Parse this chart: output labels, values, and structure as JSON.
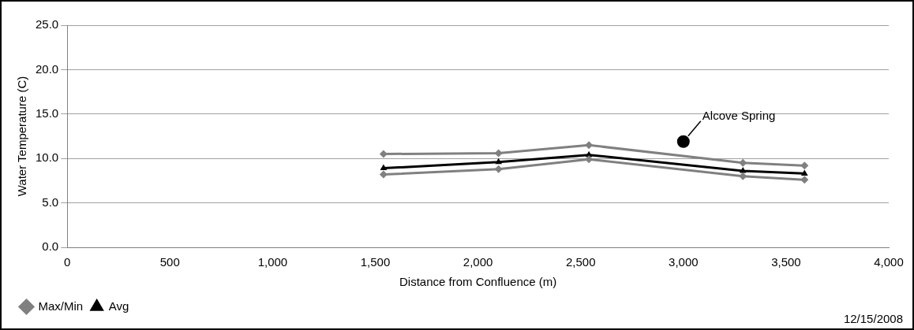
{
  "chart_data": {
    "type": "line",
    "xlabel": "Distance from Confluence (m)",
    "ylabel": "Water Temperature (C)",
    "x": [
      1540,
      2100,
      2540,
      3290,
      3590
    ],
    "series": [
      {
        "name": "Max/Min",
        "color": "#808080",
        "marker": "diamond",
        "values": [
          10.5,
          10.6,
          11.5,
          9.5,
          9.2
        ]
      },
      {
        "color": "#808080",
        "marker": "diamond",
        "values": [
          8.2,
          8.8,
          9.9,
          8.0,
          7.6
        ]
      },
      {
        "name": "Avg",
        "color": "#000000",
        "marker": "triangle",
        "values": [
          8.9,
          9.6,
          10.4,
          8.6,
          8.3
        ]
      },
      {
        "type": "scatter",
        "color": "#000000",
        "marker": "circle",
        "x": [
          3000
        ],
        "values": [
          11.9
        ]
      }
    ],
    "xlim": [
      0,
      4000
    ],
    "xticks": [
      {
        "value": 0,
        "label": "0"
      },
      {
        "value": 500,
        "label": "500"
      },
      {
        "value": 1000,
        "label": "1,000"
      },
      {
        "value": 1500,
        "label": "1,500"
      },
      {
        "value": 2000,
        "label": "2,000"
      },
      {
        "value": 2500,
        "label": "2,500"
      },
      {
        "value": 3000,
        "label": "3,000"
      },
      {
        "value": 3500,
        "label": "3,500"
      },
      {
        "value": 4000,
        "label": "4,000"
      }
    ],
    "ylim": [
      0,
      25
    ],
    "yticks": [
      {
        "value": 0,
        "label": "0.0"
      },
      {
        "value": 5,
        "label": "5.0"
      },
      {
        "value": 10,
        "label": "10.0"
      },
      {
        "value": 15,
        "label": "15.0"
      },
      {
        "value": 20,
        "label": "20.0"
      },
      {
        "value": 25,
        "label": "25.0"
      }
    ],
    "grid": "y",
    "legend": "bottom left",
    "annotations": [
      {
        "text": "Alcove Spring",
        "x": 3000,
        "y": 11.9
      },
      "12/15/2008"
    ]
  }
}
